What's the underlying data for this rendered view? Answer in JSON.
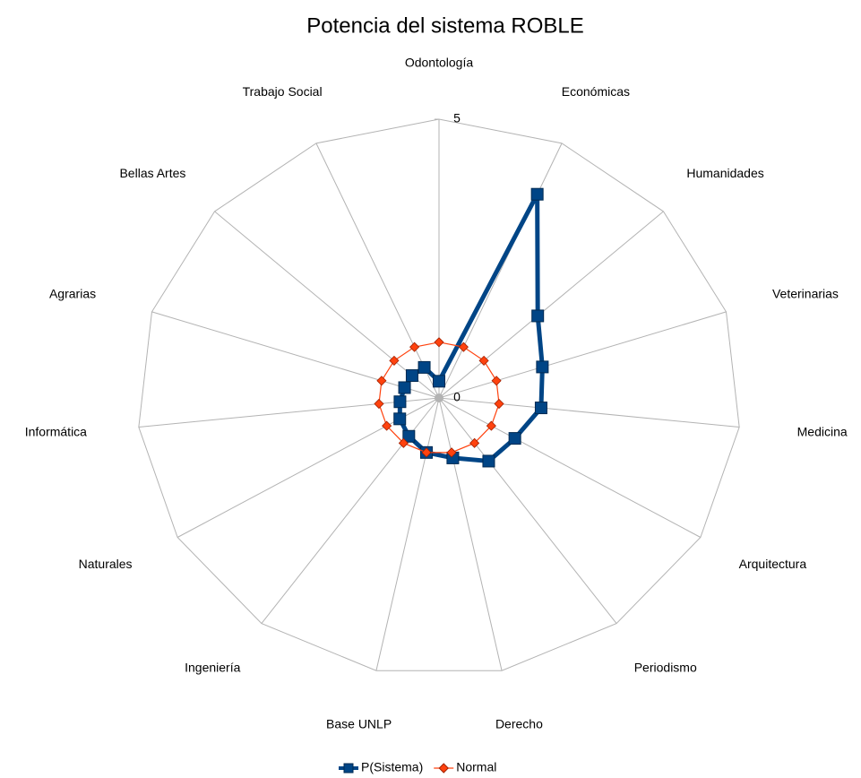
{
  "chart_data": {
    "type": "radar",
    "title": "Potencia del sistema ROBLE",
    "categories": [
      "Odontología",
      "Económicas",
      "Humanidades",
      "Veterinarias",
      "Medicina",
      "Arquitectura",
      "Periodismo",
      "Derecho",
      "Base UNLP",
      "Ingeniería",
      "Naturales",
      "Informática",
      "Agrarias",
      "Bellas Artes",
      "Trabajo Social"
    ],
    "series": [
      {
        "name": "P(Sistema)",
        "color": "#004586",
        "values": [
          0.3,
          4,
          2.2,
          1.8,
          1.7,
          1.45,
          1.4,
          1.1,
          1.0,
          0.85,
          0.75,
          0.65,
          0.6,
          0.6,
          0.6
        ]
      },
      {
        "name": "Normal",
        "color": "#ff420e",
        "values": [
          1,
          1,
          1,
          1,
          1,
          1,
          1,
          1,
          1,
          1,
          1,
          1,
          1,
          1,
          1
        ]
      }
    ],
    "ylim": [
      0,
      5
    ],
    "yticks": [
      0,
      5
    ],
    "grid": true,
    "legend": "bottom"
  }
}
